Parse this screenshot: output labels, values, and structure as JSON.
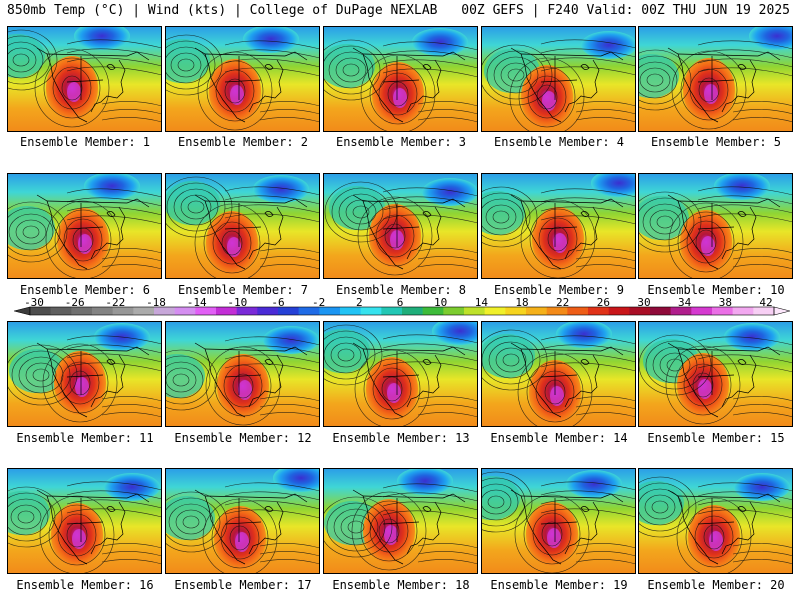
{
  "header": {
    "left": "850mb Temp (°C) | Wind (kts) | College of DuPage NEXLAB",
    "right": "00Z GEFS | F240 Valid: 00Z THU JUN 19 2025"
  },
  "colorbar": {
    "labels": [
      "-30",
      "-26",
      "-22",
      "-18",
      "-14",
      "-10",
      "-6",
      "-2",
      "2",
      "6",
      "10",
      "14",
      "18",
      "22",
      "26",
      "30",
      "34",
      "38",
      "42"
    ],
    "colors": [
      "#4e4e4e",
      "#5f5f5f",
      "#707070",
      "#838383",
      "#979797",
      "#ababab",
      "#c7a7d9",
      "#d48ef0",
      "#e15ff5",
      "#c22ed6",
      "#7a2ad8",
      "#4a2bd6",
      "#2540d6",
      "#1f6be6",
      "#1b95f2",
      "#22c3f5",
      "#36e2ee",
      "#22c7b5",
      "#1fae7a",
      "#3dbb3a",
      "#7ccc2f",
      "#bee12a",
      "#f0f02a",
      "#f6d41e",
      "#f5b11a",
      "#f38a18",
      "#ee5d17",
      "#e03218",
      "#c9161a",
      "#a90e26",
      "#8f0a3a",
      "#b01e8c",
      "#d53ad0",
      "#ea6fe6",
      "#f2a8f0",
      "#f7cff4"
    ]
  },
  "members": [
    {
      "label": "Ensemble Member: 1"
    },
    {
      "label": "Ensemble Member: 2"
    },
    {
      "label": "Ensemble Member: 3"
    },
    {
      "label": "Ensemble Member: 4"
    },
    {
      "label": "Ensemble Member: 5"
    },
    {
      "label": "Ensemble Member: 6"
    },
    {
      "label": "Ensemble Member: 7"
    },
    {
      "label": "Ensemble Member: 8"
    },
    {
      "label": "Ensemble Member: 9"
    },
    {
      "label": "Ensemble Member: 10"
    },
    {
      "label": "Ensemble Member: 11"
    },
    {
      "label": "Ensemble Member: 12"
    },
    {
      "label": "Ensemble Member: 13"
    },
    {
      "label": "Ensemble Member: 14"
    },
    {
      "label": "Ensemble Member: 15"
    },
    {
      "label": "Ensemble Member: 16"
    },
    {
      "label": "Ensemble Member: 17"
    },
    {
      "label": "Ensemble Member: 18"
    },
    {
      "label": "Ensemble Member: 19"
    },
    {
      "label": "Ensemble Member: 20"
    }
  ]
}
